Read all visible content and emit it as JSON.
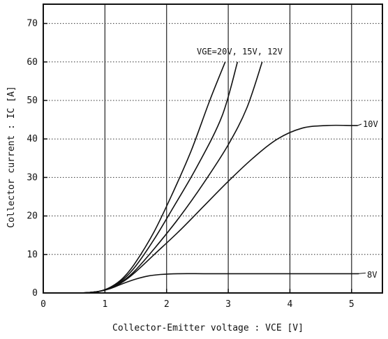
{
  "chart_data": {
    "type": "line",
    "title": "",
    "xlabel": "Collector-Emitter voltage : VCE [V]",
    "ylabel": "Collector current : IC [A]",
    "xlim": [
      0,
      5.5
    ],
    "ylim": [
      0,
      75
    ],
    "x_ticks": [
      "0",
      "1",
      "2",
      "3",
      "4",
      "5"
    ],
    "y_ticks": [
      "0",
      "10",
      "20",
      "30",
      "40",
      "50",
      "60",
      "70"
    ],
    "grid": true,
    "series": [
      {
        "name": "VGE=20V",
        "x": [
          0,
          0.6,
          0.9,
          1.1,
          1.3,
          1.5,
          1.8,
          2.1,
          2.4,
          2.7,
          2.95
        ],
        "y": [
          0,
          0,
          0.4,
          1.6,
          4,
          8,
          16,
          26,
          37,
          50,
          60
        ]
      },
      {
        "name": "15V",
        "x": [
          0,
          0.6,
          0.9,
          1.1,
          1.3,
          1.5,
          1.8,
          2.1,
          2.5,
          2.9,
          3.15
        ],
        "y": [
          0,
          0,
          0.4,
          1.5,
          3.6,
          7,
          14,
          22,
          33,
          46,
          60
        ]
      },
      {
        "name": "12V",
        "x": [
          0,
          0.6,
          0.9,
          1.1,
          1.3,
          1.5,
          1.8,
          2.2,
          2.6,
          3.0,
          3.3,
          3.55
        ],
        "y": [
          0,
          0,
          0.4,
          1.4,
          3.2,
          6,
          11.5,
          19.5,
          28.5,
          38.5,
          48,
          60
        ]
      },
      {
        "name": "10V",
        "x": [
          0,
          0.6,
          0.9,
          1.1,
          1.3,
          1.5,
          1.8,
          2.2,
          2.6,
          3.0,
          3.4,
          3.8,
          4.2,
          4.6,
          5.0,
          5.1
        ],
        "y": [
          0,
          0,
          0.4,
          1.3,
          3,
          5.5,
          10,
          16,
          22.5,
          29,
          35,
          40,
          42.8,
          43.5,
          43.5,
          43.5
        ]
      },
      {
        "name": "8V",
        "x": [
          0,
          0.6,
          0.9,
          1.1,
          1.3,
          1.5,
          1.7,
          1.9,
          2.2,
          2.6,
          3.0,
          4.0,
          5.0,
          5.1
        ],
        "y": [
          0,
          0,
          0.4,
          1.2,
          2.5,
          3.6,
          4.4,
          4.8,
          5,
          5,
          5,
          5,
          5,
          5
        ]
      }
    ],
    "labels": {
      "upper_group": "VGE=20V, 15V, 12V",
      "v10": "10V",
      "v8": "8V"
    }
  }
}
